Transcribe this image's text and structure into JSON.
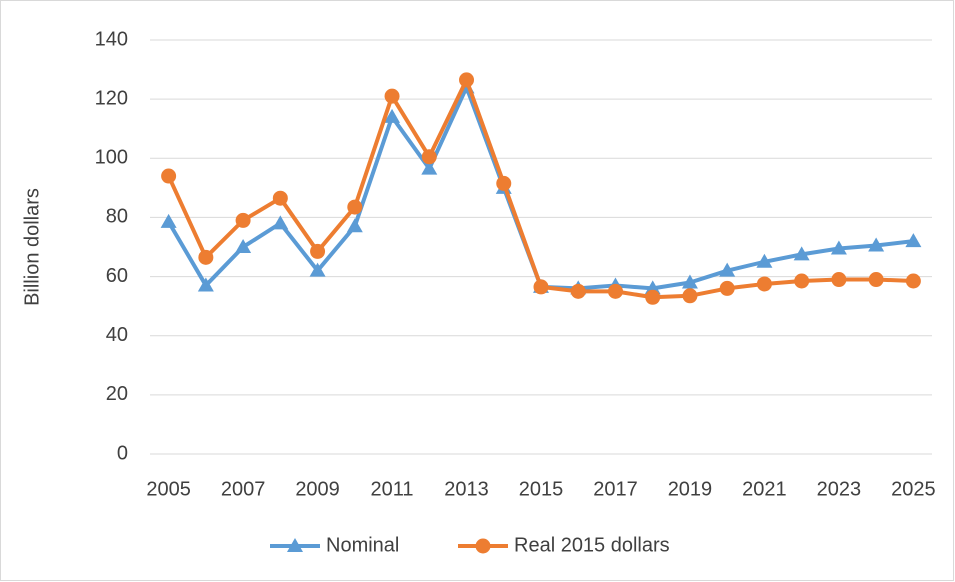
{
  "chart_data": {
    "type": "line",
    "x": [
      2005,
      2006,
      2007,
      2008,
      2009,
      2010,
      2011,
      2012,
      2013,
      2014,
      2015,
      2016,
      2017,
      2018,
      2019,
      2020,
      2021,
      2022,
      2023,
      2024,
      2025
    ],
    "series": [
      {
        "name": "Nominal",
        "color": "#5b9bd5",
        "marker": "triangle",
        "values": [
          78.5,
          57,
          70,
          78,
          62,
          77,
          114,
          96.5,
          124,
          90,
          56.5,
          56,
          57,
          56,
          58,
          62,
          65,
          67.5,
          69.5,
          70.5,
          72
        ]
      },
      {
        "name": "Real 2015 dollars",
        "color": "#ed7d31",
        "marker": "circle",
        "values": [
          94,
          66.5,
          79,
          86.5,
          68.5,
          83.5,
          121,
          100.5,
          126.5,
          91.5,
          56.5,
          55,
          55,
          53,
          53.5,
          56,
          57.5,
          58.5,
          59,
          59,
          58.5
        ]
      }
    ],
    "y_label": "Billion dollars",
    "xlim": [
      2004.5,
      2025.5
    ],
    "xticks": [
      2005,
      2007,
      2009,
      2011,
      2013,
      2015,
      2017,
      2019,
      2021,
      2023,
      2025
    ],
    "ylim": [
      0,
      140
    ],
    "yticks": [
      0,
      20,
      40,
      60,
      80,
      100,
      120,
      140
    ],
    "grid": true,
    "legend": "bottom"
  }
}
